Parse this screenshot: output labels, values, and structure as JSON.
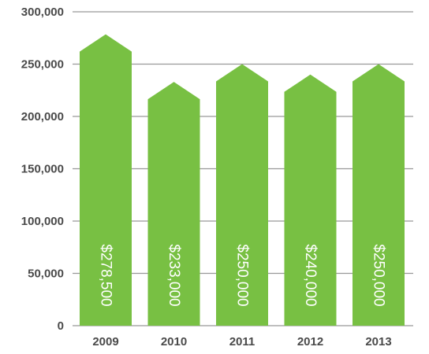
{
  "chart_data": {
    "type": "bar",
    "categories": [
      "2009",
      "2010",
      "2011",
      "2012",
      "2013"
    ],
    "values": [
      278500,
      233000,
      250000,
      240000,
      250000
    ],
    "data_labels": [
      "$278,500",
      "$233,000",
      "$250,000",
      "$240,000",
      "$250,000"
    ],
    "yticks": [
      0,
      50000,
      100000,
      150000,
      200000,
      250000,
      300000
    ],
    "ytick_labels": [
      "0",
      "50,000",
      "100,000",
      "150,000",
      "200,000",
      "250,000",
      "300,000"
    ],
    "ylim": [
      0,
      300000
    ],
    "grid": true,
    "legend": false,
    "title": "",
    "xlabel": "",
    "ylabel": "",
    "colors": {
      "bar": "#78c043",
      "grid": "#999999",
      "tick_text": "#4a4a4a",
      "label_text": "#ffffff"
    }
  }
}
